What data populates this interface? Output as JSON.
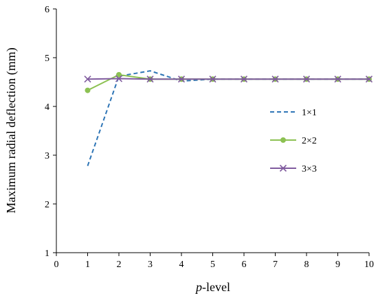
{
  "chart_data": {
    "type": "line",
    "title": "",
    "xlabel_italic": "p",
    "xlabel_rest": "-level",
    "ylabel": "Maximum radial deflection (mm)",
    "xlim": [
      0,
      10
    ],
    "ylim": [
      1,
      6
    ],
    "xticks": [
      0,
      1,
      2,
      3,
      4,
      5,
      6,
      7,
      8,
      9,
      10
    ],
    "yticks": [
      1,
      2,
      3,
      4,
      5,
      6
    ],
    "grid": false,
    "legend_position": "right",
    "series": [
      {
        "name": "1×1",
        "color": "#2E75B6",
        "style": "dashed",
        "marker": "none",
        "x": [
          1,
          2,
          3,
          4,
          5,
          6,
          7,
          8,
          9,
          10
        ],
        "y": [
          2.78,
          4.62,
          4.73,
          4.52,
          4.56,
          4.56,
          4.56,
          4.56,
          4.56,
          4.56
        ]
      },
      {
        "name": "2×2",
        "color": "#8CC152",
        "style": "solid",
        "marker": "circle",
        "x": [
          1,
          2,
          3,
          4,
          5,
          6,
          7,
          8,
          9,
          10
        ],
        "y": [
          4.33,
          4.65,
          4.56,
          4.56,
          4.56,
          4.56,
          4.56,
          4.56,
          4.56,
          4.56
        ]
      },
      {
        "name": "3×3",
        "color": "#7F5A9E",
        "style": "solid",
        "marker": "x",
        "x": [
          1,
          2,
          3,
          4,
          5,
          6,
          7,
          8,
          9,
          10
        ],
        "y": [
          4.56,
          4.57,
          4.56,
          4.56,
          4.56,
          4.56,
          4.56,
          4.56,
          4.56,
          4.56
        ]
      }
    ]
  }
}
